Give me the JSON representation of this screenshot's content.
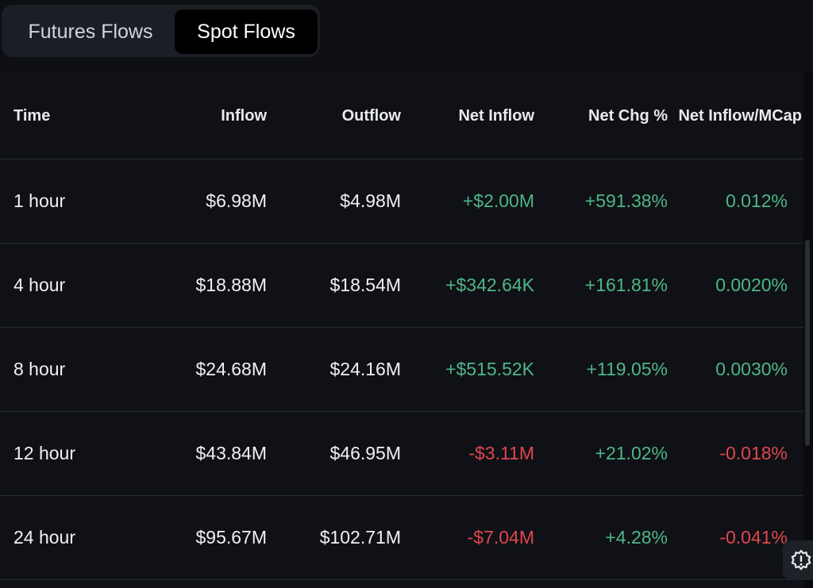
{
  "tabs": [
    {
      "label": "Futures Flows",
      "active": false
    },
    {
      "label": "Spot Flows",
      "active": true
    }
  ],
  "table": {
    "headers": {
      "time": "Time",
      "inflow": "Inflow",
      "outflow": "Outflow",
      "net_inflow": "Net Inflow",
      "net_chg": "Net Chg %",
      "net_inflow_mcap": "Net Inflow/MCap"
    },
    "rows": [
      {
        "time": "1 hour",
        "inflow": "$6.98M",
        "outflow": "$4.98M",
        "net_inflow": "+$2.00M",
        "net_chg": "+591.38%",
        "net_inflow_mcap": "0.012%",
        "net_positive": true,
        "chg_positive": true,
        "mcap_positive": true
      },
      {
        "time": "4 hour",
        "inflow": "$18.88M",
        "outflow": "$18.54M",
        "net_inflow": "+$342.64K",
        "net_chg": "+161.81%",
        "net_inflow_mcap": "0.0020%",
        "net_positive": true,
        "chg_positive": true,
        "mcap_positive": true
      },
      {
        "time": "8 hour",
        "inflow": "$24.68M",
        "outflow": "$24.16M",
        "net_inflow": "+$515.52K",
        "net_chg": "+119.05%",
        "net_inflow_mcap": "0.0030%",
        "net_positive": true,
        "chg_positive": true,
        "mcap_positive": true
      },
      {
        "time": "12 hour",
        "inflow": "$43.84M",
        "outflow": "$46.95M",
        "net_inflow": "-$3.11M",
        "net_chg": "+21.02%",
        "net_inflow_mcap": "-0.018%",
        "net_positive": false,
        "chg_positive": true,
        "mcap_positive": false
      },
      {
        "time": "24 hour",
        "inflow": "$95.67M",
        "outflow": "$102.71M",
        "net_inflow": "-$7.04M",
        "net_chg": "+4.28%",
        "net_inflow_mcap": "-0.041%",
        "net_positive": false,
        "chg_positive": true,
        "mcap_positive": false
      }
    ]
  },
  "colors": {
    "positive": "#4fb687",
    "negative": "#e0474f",
    "background": "#0d0f14"
  },
  "icons": {
    "floating_button": "settings-alert-icon"
  }
}
